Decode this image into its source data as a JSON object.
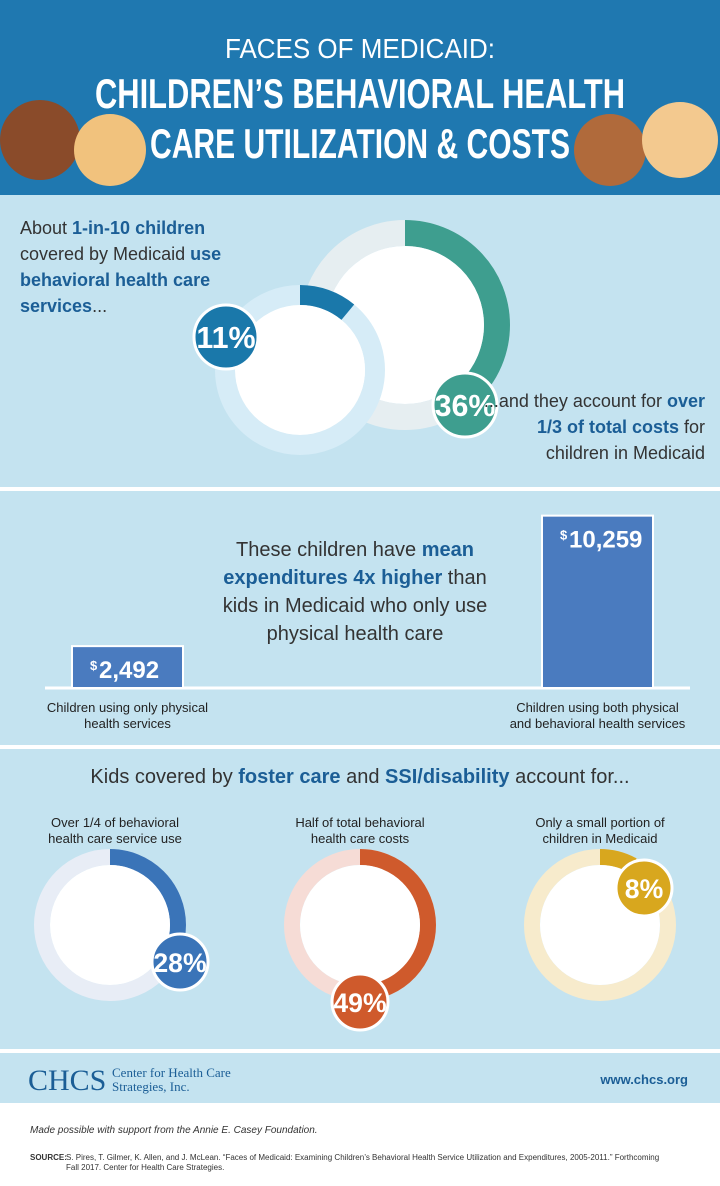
{
  "header": {
    "line1": "FACES OF MEDICAID:",
    "line2": "CHILDREN’S BEHAVIORAL HEALTH",
    "line3": "CARE UTILIZATION & COSTS"
  },
  "use": {
    "text": [
      "About ",
      "1-in-10 children",
      " covered by Medicaid ",
      "use behavioral health care services",
      "..."
    ],
    "share": {
      "value": 11,
      "label": "11%"
    }
  },
  "cost": {
    "text": [
      "...and they account for ",
      "over 1/3 of total costs",
      " for children in Medicaid"
    ],
    "share": {
      "value": 36,
      "label": "36%"
    }
  },
  "spending": {
    "text": [
      "These children have ",
      "mean expenditures 4x higher",
      " than kids in Medicaid who only use physical health care"
    ],
    "currency": "$",
    "bars": [
      {
        "label": "Children using only physical health services",
        "value": 2492,
        "value_label": "2,492"
      },
      {
        "label": "Children using both physical and behavioral health services",
        "value": 10259,
        "value_label": "10,259"
      }
    ]
  },
  "groups": {
    "text": [
      "Kids covered by ",
      "foster care",
      " and ",
      "SSI/disability",
      " account for..."
    ],
    "items": [
      {
        "caption": "Over 1/4 of behavioral health care service use",
        "share": {
          "value": 28,
          "label": "28%"
        }
      },
      {
        "caption": "Half of total behavioral health care costs",
        "share": {
          "value": 49,
          "label": "49%"
        }
      },
      {
        "caption": "Only a small portion of children in Medicaid",
        "share": {
          "value": 8,
          "label": "8%"
        }
      }
    ]
  },
  "footer": {
    "logo": "CHCS",
    "org": "Center for Health Care Strategies, Inc.",
    "url": "www.chcs.org",
    "support": "Made possible with support from the Annie E. Casey Foundation.",
    "source_label": "SOURCE:",
    "source": "S. Pires, T. Gilmer, K. Allen, and J. McLean. “Faces of Medicaid: Examining Children’s Behavioral Health Service Utilization and Expenditures, 2005-2011.” Forthcoming Fall 2017. Center for Health Care Strategies."
  }
}
